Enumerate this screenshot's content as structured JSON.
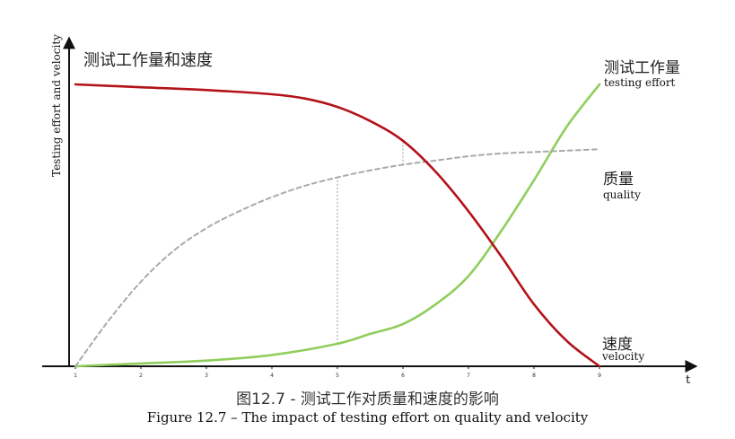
{
  "chart_data": {
    "type": "line",
    "title_cn": "测试工作量和速度",
    "ylabel": "Testing effort and velocity",
    "xlabel": "t",
    "x_ticks": [
      "1",
      "2",
      "3",
      "4",
      "5",
      "6",
      "7",
      "8",
      "9"
    ],
    "xlim": [
      1,
      9
    ],
    "ylim": [
      0,
      100
    ],
    "grid": false,
    "series": [
      {
        "name_cn": "测试工作量",
        "name_en": "testing effort",
        "color": "#8fce5c",
        "style": "solid",
        "points": [
          [
            1,
            0
          ],
          [
            2,
            1
          ],
          [
            3,
            2
          ],
          [
            4,
            4
          ],
          [
            5,
            8
          ],
          [
            5.5,
            11.5
          ],
          [
            6,
            15
          ],
          [
            6.5,
            22
          ],
          [
            7,
            32
          ],
          [
            7.5,
            48
          ],
          [
            8,
            66
          ],
          [
            8.5,
            85
          ],
          [
            9,
            100
          ]
        ]
      },
      {
        "name_cn": "质量",
        "name_en": "quality",
        "color": "#aaaaaa",
        "style": "dashed",
        "points": [
          [
            1,
            0
          ],
          [
            1.5,
            16
          ],
          [
            2,
            30
          ],
          [
            2.5,
            41
          ],
          [
            3,
            49
          ],
          [
            3.5,
            55
          ],
          [
            4,
            60
          ],
          [
            4.5,
            64
          ],
          [
            5,
            67
          ],
          [
            5.5,
            69.5
          ],
          [
            6,
            71.5
          ],
          [
            6.5,
            73
          ],
          [
            7,
            74.5
          ],
          [
            7.5,
            75.5
          ],
          [
            8,
            76
          ],
          [
            8.5,
            76.5
          ],
          [
            9,
            77
          ]
        ]
      },
      {
        "name_cn": "速度",
        "name_en": "velocity",
        "color": "#b31219",
        "style": "solid",
        "points": [
          [
            1,
            100
          ],
          [
            2,
            99
          ],
          [
            3,
            98
          ],
          [
            4,
            96.5
          ],
          [
            4.5,
            95
          ],
          [
            5,
            92
          ],
          [
            5.5,
            87
          ],
          [
            6,
            80
          ],
          [
            6.5,
            69
          ],
          [
            7,
            55
          ],
          [
            7.5,
            39
          ],
          [
            8,
            22
          ],
          [
            8.5,
            9
          ],
          [
            9,
            0
          ]
        ]
      }
    ],
    "reference_lines": [
      {
        "x": 5,
        "from_y": 8,
        "to_y": 67
      },
      {
        "x": 6,
        "from_y": 71.5,
        "to_y": 80
      }
    ]
  },
  "caption": {
    "cn": "图12.7 - 测试工作对质量和速度的影响",
    "en": "Figure 12.7 – The impact of testing effort on quality and velocity"
  }
}
